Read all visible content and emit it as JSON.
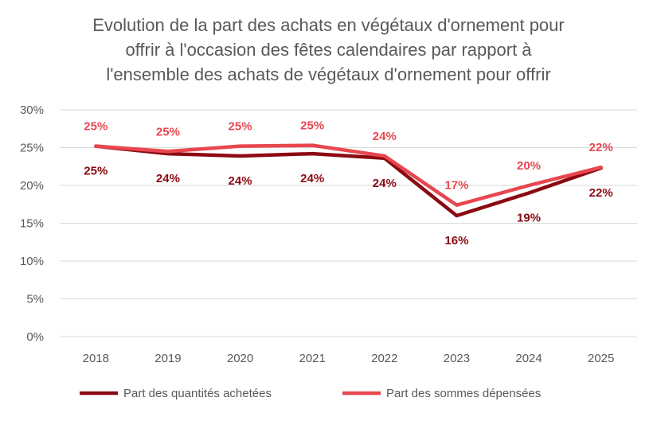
{
  "chart_data": {
    "type": "line",
    "title_lines": [
      "Evolution de la part des achats en végétaux d'ornement pour",
      "offrir à l'occasion des fêtes calendaires par rapport à",
      "l'ensemble des achats de végétaux d'ornement pour offrir"
    ],
    "categories": [
      "2018",
      "2019",
      "2020",
      "2021",
      "2022",
      "2023",
      "2024",
      "2025"
    ],
    "y_ticks": [
      "0%",
      "5%",
      "10%",
      "15%",
      "20%",
      "25%",
      "30%"
    ],
    "ylim": [
      0,
      30
    ],
    "grid": true,
    "legend_position": "bottom",
    "series": [
      {
        "name": "Part des quantités achetées",
        "color": "#8B0A12",
        "values": [
          25.2,
          24.2,
          23.9,
          24.2,
          23.6,
          16.0,
          19.0,
          22.3
        ],
        "labels": [
          "25%",
          "24%",
          "24%",
          "24%",
          "24%",
          "16%",
          "19%",
          "22%"
        ],
        "label_position": "below"
      },
      {
        "name": "Part des sommes dépensées",
        "color": "#E8474F",
        "values": [
          25.2,
          24.5,
          25.2,
          25.3,
          23.9,
          17.4,
          20.0,
          22.4
        ],
        "labels": [
          "25%",
          "25%",
          "25%",
          "25%",
          "24%",
          "17%",
          "20%",
          "22%"
        ],
        "label_position": "above"
      }
    ]
  }
}
